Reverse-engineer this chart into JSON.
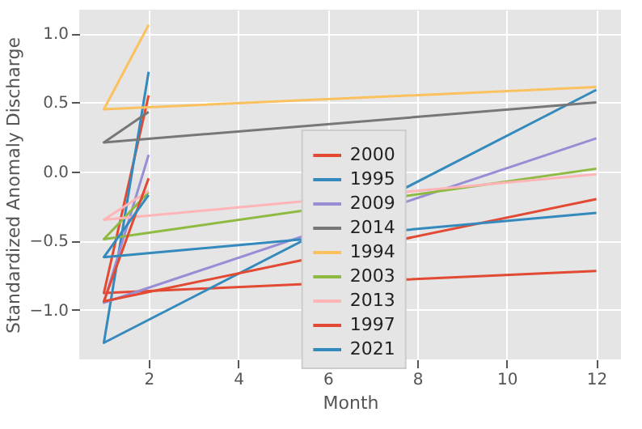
{
  "chart_data": {
    "type": "line",
    "xlabel": "Month",
    "ylabel": "Standardized Anomaly Discharge",
    "series": [
      {
        "name": "2000",
        "color": "#e24a33",
        "x": [
          2,
          1,
          12
        ],
        "values": [
          0.55,
          -0.88,
          -0.72
        ]
      },
      {
        "name": "1995",
        "color": "#348abd",
        "x": [
          2,
          1,
          12
        ],
        "values": [
          0.72,
          -1.24,
          0.59
        ]
      },
      {
        "name": "2009",
        "color": "#988ed5",
        "x": [
          2,
          1,
          12
        ],
        "values": [
          0.12,
          -0.95,
          0.24
        ]
      },
      {
        "name": "2014",
        "color": "#777777",
        "x": [
          2,
          1,
          12
        ],
        "values": [
          0.43,
          0.21,
          0.5
        ]
      },
      {
        "name": "1994",
        "color": "#fbc15e",
        "x": [
          2,
          1,
          12
        ],
        "values": [
          1.06,
          0.45,
          0.61
        ]
      },
      {
        "name": "2003",
        "color": "#8eba42",
        "x": [
          2,
          1,
          12
        ],
        "values": [
          -0.15,
          -0.49,
          0.02
        ]
      },
      {
        "name": "2013",
        "color": "#ffb5b8",
        "x": [
          2,
          1,
          12
        ],
        "values": [
          -0.14,
          -0.35,
          -0.02
        ]
      },
      {
        "name": "1997",
        "color": "#e24a33",
        "x": [
          2,
          1,
          12
        ],
        "values": [
          -0.05,
          -0.94,
          -0.2
        ]
      },
      {
        "name": "2021",
        "color": "#348abd",
        "x": [
          2,
          1,
          12
        ],
        "values": [
          -0.17,
          -0.62,
          -0.3
        ]
      }
    ],
    "xlim": [
      0.45,
      12.55
    ],
    "xticks": [
      2,
      4,
      6,
      8,
      10,
      12
    ],
    "ylim": [
      -1.36,
      1.17
    ],
    "yticks": [
      {
        "value": -1,
        "label": "−1.0"
      },
      {
        "value": -0.5,
        "label": "−0.5"
      },
      {
        "value": 0,
        "label": "0.0"
      },
      {
        "value": 0.5,
        "label": "0.5"
      },
      {
        "value": 1,
        "label": "1.0"
      }
    ],
    "grid": true,
    "legend": "bottom",
    "marker": "none",
    "line_style": "solid"
  }
}
